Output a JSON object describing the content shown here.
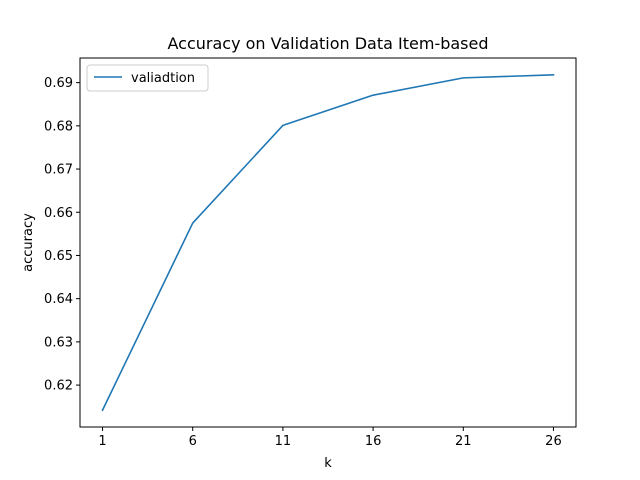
{
  "chart_data": {
    "type": "line",
    "title": "Accuracy on Validation Data Item-based",
    "xlabel": "k",
    "ylabel": "accuracy",
    "x": [
      1,
      6,
      11,
      16,
      21,
      26
    ],
    "series": [
      {
        "name": "valiadtion",
        "color": "#1f77b4",
        "values": [
          0.6142,
          0.6575,
          0.6801,
          0.6871,
          0.6911,
          0.6918
        ]
      }
    ],
    "xlim": [
      -0.25,
      27.25
    ],
    "ylim": [
      0.6103,
      0.6957
    ],
    "xticks": [
      1,
      6,
      11,
      16,
      21,
      26
    ],
    "xtick_labels": [
      "1",
      "6",
      "11",
      "16",
      "21",
      "26"
    ],
    "yticks": [
      0.62,
      0.63,
      0.64,
      0.65,
      0.66,
      0.67,
      0.68,
      0.69
    ],
    "ytick_labels": [
      "0.62",
      "0.63",
      "0.64",
      "0.65",
      "0.66",
      "0.67",
      "0.68",
      "0.69"
    ],
    "grid": false,
    "legend_position": "top-left"
  }
}
